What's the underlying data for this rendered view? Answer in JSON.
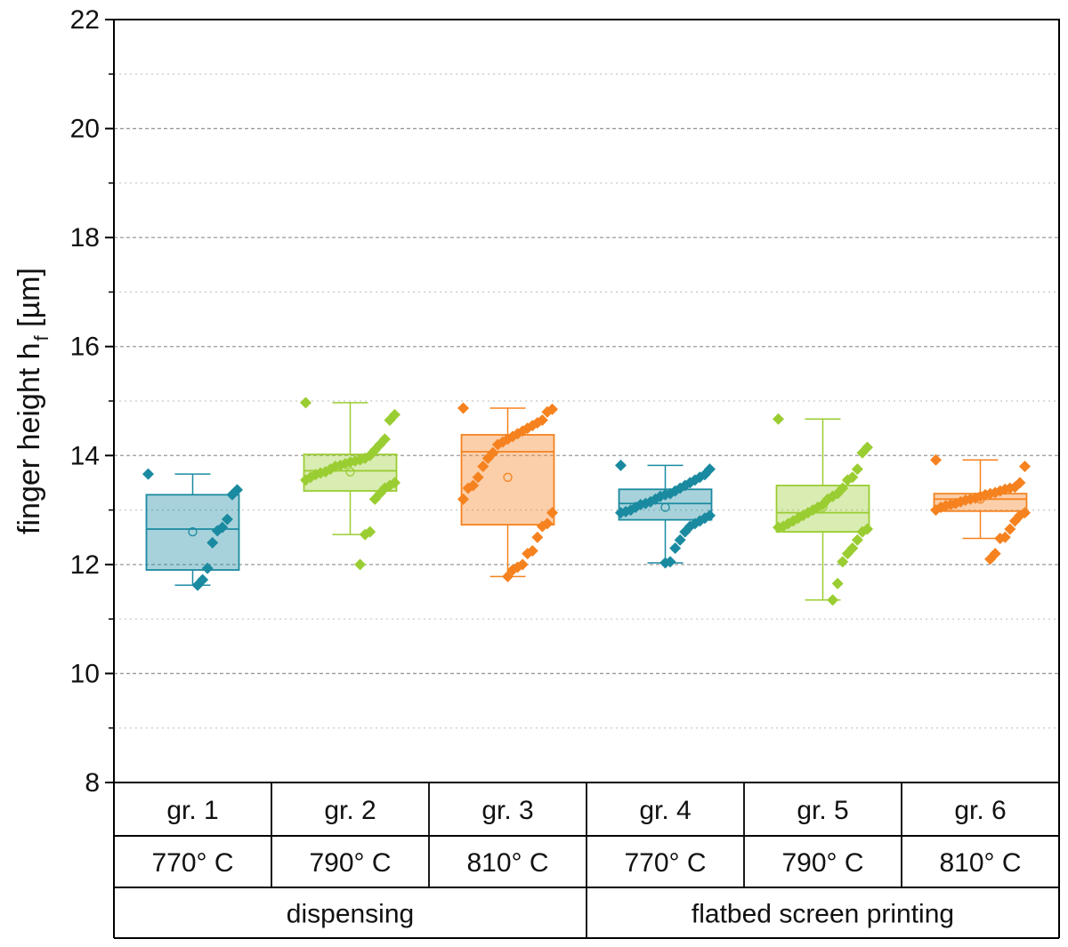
{
  "chart_data": {
    "type": "box",
    "ylabel_main": "finger height h",
    "ylabel_sub": "f",
    "ylabel_unit": " [µm]",
    "ylim": [
      8,
      22
    ],
    "yticks": [
      8,
      10,
      12,
      14,
      16,
      18,
      20,
      22
    ],
    "ytick_labels": [
      "8",
      "10",
      "12",
      "14",
      "16",
      "18",
      "20",
      "22"
    ],
    "grid": true,
    "colors": {
      "teal": "#1A8AA0",
      "lime": "#9ACD32",
      "orange": "#F5821F"
    },
    "groups": [
      {
        "name": "gr. 1",
        "temperature": "770° C",
        "method": "dispensing",
        "color": "teal",
        "box": {
          "whisker_low": 11.62,
          "q1": 11.9,
          "median": 12.65,
          "mean": 12.6,
          "q3": 13.28,
          "whisker_high": 13.66
        },
        "points": [
          13.66,
          13.37,
          13.28,
          12.83,
          12.68,
          12.62,
          12.4,
          11.93,
          11.72,
          11.62
        ]
      },
      {
        "name": "gr. 2",
        "temperature": "790° C",
        "method": "dispensing",
        "color": "lime",
        "box": {
          "whisker_low": 12.55,
          "q1": 13.35,
          "median": 13.72,
          "mean": 13.7,
          "q3": 14.02,
          "whisker_high": 14.97
        },
        "points": [
          14.97,
          14.75,
          14.65,
          14.3,
          14.2,
          14.1,
          14.0,
          13.95,
          13.92,
          13.9,
          13.88,
          13.85,
          13.82,
          13.8,
          13.75,
          13.7,
          13.68,
          13.65,
          13.6,
          13.55,
          13.5,
          13.45,
          13.4,
          13.3,
          13.2,
          12.6,
          12.55,
          12.0
        ]
      },
      {
        "name": "gr. 3",
        "temperature": "810° C",
        "method": "dispensing",
        "color": "orange",
        "box": {
          "whisker_low": 11.78,
          "q1": 12.73,
          "median": 14.07,
          "mean": 13.6,
          "q3": 14.38,
          "whisker_high": 14.87
        },
        "points": [
          14.87,
          14.85,
          14.8,
          14.65,
          14.6,
          14.55,
          14.5,
          14.45,
          14.4,
          14.35,
          14.3,
          14.25,
          14.2,
          14.05,
          13.95,
          13.8,
          13.6,
          13.45,
          13.4,
          13.2,
          12.95,
          12.75,
          12.7,
          12.5,
          12.25,
          12.2,
          12.0,
          11.95,
          11.9,
          11.78
        ]
      },
      {
        "name": "gr. 4",
        "temperature": "770° C",
        "method": "flatbed screen printing",
        "color": "teal",
        "box": {
          "whisker_low": 12.03,
          "q1": 12.82,
          "median": 13.12,
          "mean": 13.05,
          "q3": 13.38,
          "whisker_high": 13.82
        },
        "points": [
          13.82,
          13.75,
          13.65,
          13.6,
          13.55,
          13.5,
          13.45,
          13.4,
          13.35,
          13.3,
          13.28,
          13.25,
          13.2,
          13.15,
          13.12,
          13.1,
          13.05,
          13.0,
          12.97,
          12.95,
          12.9,
          12.85,
          12.8,
          12.75,
          12.7,
          12.6,
          12.45,
          12.3,
          12.05,
          12.03
        ]
      },
      {
        "name": "gr. 5",
        "temperature": "790° C",
        "method": "flatbed screen printing",
        "color": "lime",
        "box": {
          "whisker_low": 11.35,
          "q1": 12.6,
          "median": 12.95,
          "mean": 13.05,
          "q3": 13.45,
          "whisker_high": 14.67
        },
        "points": [
          14.67,
          14.15,
          14.05,
          13.75,
          13.6,
          13.55,
          13.4,
          13.3,
          13.25,
          13.2,
          13.1,
          13.05,
          13.0,
          12.95,
          12.9,
          12.85,
          12.8,
          12.75,
          12.7,
          12.68,
          12.65,
          12.6,
          12.45,
          12.3,
          12.2,
          12.05,
          11.65,
          11.35
        ]
      },
      {
        "name": "gr. 6",
        "temperature": "810° C",
        "method": "flatbed screen printing",
        "color": "orange",
        "box": {
          "whisker_low": 12.48,
          "q1": 12.98,
          "median": 13.2,
          "mean": 13.2,
          "q3": 13.3,
          "whisker_high": 13.92
        },
        "points": [
          13.92,
          13.8,
          13.5,
          13.42,
          13.4,
          13.38,
          13.35,
          13.32,
          13.3,
          13.28,
          13.25,
          13.22,
          13.2,
          13.18,
          13.15,
          13.12,
          13.1,
          13.08,
          13.05,
          13.0,
          12.95,
          12.9,
          12.8,
          12.65,
          12.5,
          12.48,
          12.2,
          12.1
        ]
      }
    ],
    "methods": [
      {
        "label": "dispensing",
        "group_span": [
          0,
          2
        ]
      },
      {
        "label": "flatbed screen printing",
        "group_span": [
          3,
          5
        ]
      }
    ]
  }
}
